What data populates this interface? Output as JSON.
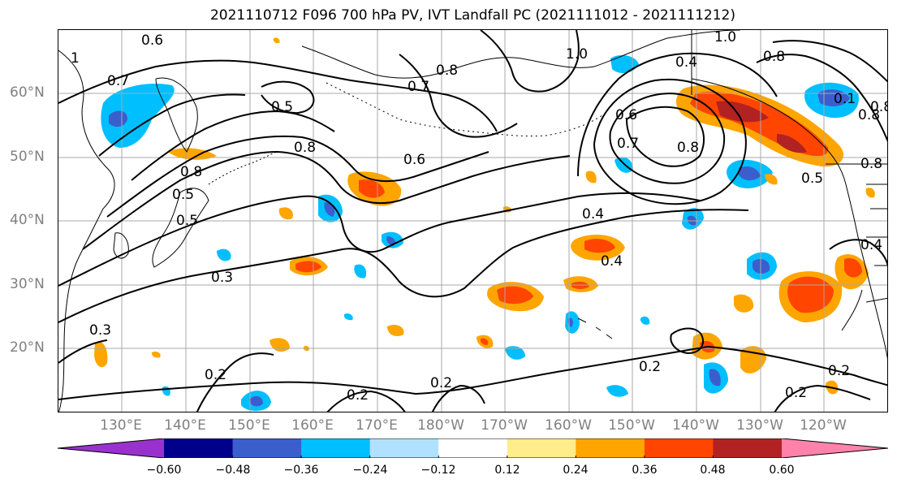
{
  "title": "2021110712 F096 700 hPa PV, IVT Landfall PC (2021111012 - 2021111212)",
  "latitude_labels": [
    "60°N",
    "50°N",
    "40°N",
    "30°N",
    "20°N"
  ],
  "longitude_labels": [
    "130°E",
    "140°E",
    "150°E",
    "160°E",
    "170°E",
    "180°W",
    "170°W",
    "160°W",
    "150°W",
    "140°W",
    "130°W",
    "120°W"
  ],
  "colorbar": {
    "extend": "both",
    "ticks": [
      "−0.60",
      "−0.48",
      "−0.36",
      "−0.24",
      "−0.12",
      "0.12",
      "0.24",
      "0.36",
      "0.48",
      "0.60"
    ],
    "colors": [
      "#9932cc",
      "#00008b",
      "#3a5fcd",
      "#00bfff",
      "#b0e2ff",
      "#ffffff",
      "#ffec8b",
      "#ffa500",
      "#ff4500",
      "#b22222",
      "#ff82ab"
    ]
  },
  "contour_labels": [
    "0.6",
    "0.7",
    "0.8",
    "0.5",
    "0.8",
    "0.7",
    "0.8",
    "0.6",
    "1.0",
    "1.0",
    "0.4",
    "0.8",
    "0.6",
    "0.7",
    "0.8",
    "0.8",
    "0.5",
    "0.5",
    "0.8",
    "0.5",
    "0.4",
    "0.4",
    "0.3",
    "0.3",
    "0.2",
    "0.2",
    "0.2",
    "0.2",
    "0.2",
    "0.2",
    "0.4",
    "1",
    "0.1",
    "0.8"
  ]
}
